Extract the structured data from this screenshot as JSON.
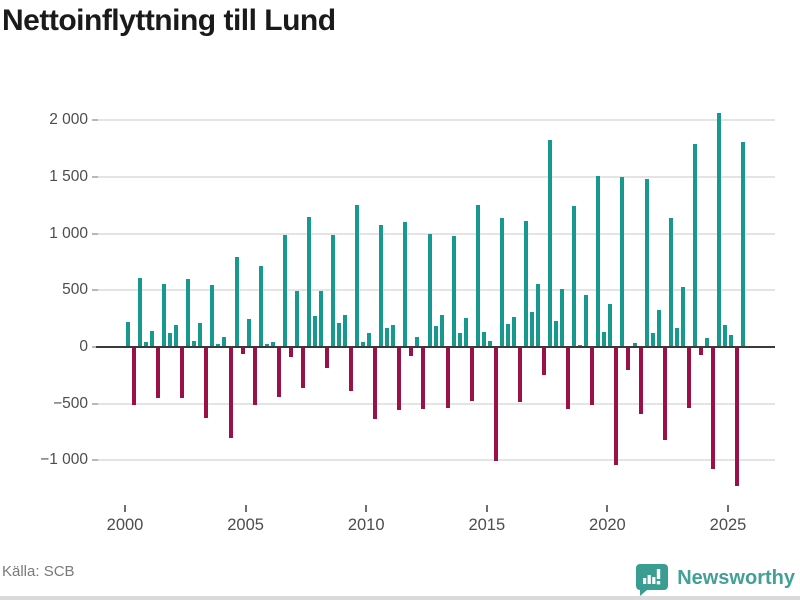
{
  "title": "Nettoinflyttning till Lund",
  "source": "Källa: SCB",
  "branding": {
    "logo_text": "Newsworthy",
    "logo_icon": "newsworthy-bubble-chart-icon"
  },
  "colors": {
    "positive_bar": "#17998f",
    "negative_bar": "#9c1048",
    "grid": "#e4e4e4",
    "zero_line": "#3a3a3a",
    "axis_text": "#4d4d4d",
    "source_text": "#7a7a7a",
    "brand_teal": "#42a096",
    "title_text": "#1a1a1a"
  },
  "chart_data": {
    "type": "bar",
    "title": "Nettoinflyttning till Lund",
    "xlabel": "",
    "ylabel": "",
    "x_unit": "quarter",
    "ylim": [
      -1250,
      2100
    ],
    "grid": "horizontal",
    "legend": "none",
    "y_ticks": [
      {
        "label": "2 000",
        "value": 2000
      },
      {
        "label": "1 500",
        "value": 1500
      },
      {
        "label": "1 000",
        "value": 1000
      },
      {
        "label": "500",
        "value": 500
      },
      {
        "label": "0",
        "value": 0
      },
      {
        "label": "−500",
        "value": -500
      },
      {
        "label": "−1 000",
        "value": -1000
      }
    ],
    "x_ticks": [
      {
        "label": "2000",
        "year": 2000
      },
      {
        "label": "2005",
        "year": 2005
      },
      {
        "label": "2010",
        "year": 2010
      },
      {
        "label": "2015",
        "year": 2015
      },
      {
        "label": "2020",
        "year": 2020
      },
      {
        "label": "2025",
        "year": 2025
      }
    ],
    "categories": [
      "2000-Q1",
      "2000-Q2",
      "2000-Q3",
      "2000-Q4",
      "2001-Q1",
      "2001-Q2",
      "2001-Q3",
      "2001-Q4",
      "2002-Q1",
      "2002-Q2",
      "2002-Q3",
      "2002-Q4",
      "2003-Q1",
      "2003-Q2",
      "2003-Q3",
      "2003-Q4",
      "2004-Q1",
      "2004-Q2",
      "2004-Q3",
      "2004-Q4",
      "2005-Q1",
      "2005-Q2",
      "2005-Q3",
      "2005-Q4",
      "2006-Q1",
      "2006-Q2",
      "2006-Q3",
      "2006-Q4",
      "2007-Q1",
      "2007-Q2",
      "2007-Q3",
      "2007-Q4",
      "2008-Q1",
      "2008-Q2",
      "2008-Q3",
      "2008-Q4",
      "2009-Q1",
      "2009-Q2",
      "2009-Q3",
      "2009-Q4",
      "2010-Q1",
      "2010-Q2",
      "2010-Q3",
      "2010-Q4",
      "2011-Q1",
      "2011-Q2",
      "2011-Q3",
      "2011-Q4",
      "2012-Q1",
      "2012-Q2",
      "2012-Q3",
      "2012-Q4",
      "2013-Q1",
      "2013-Q2",
      "2013-Q3",
      "2013-Q4",
      "2014-Q1",
      "2014-Q2",
      "2014-Q3",
      "2014-Q4",
      "2015-Q1",
      "2015-Q2",
      "2015-Q3",
      "2015-Q4",
      "2016-Q1",
      "2016-Q2",
      "2016-Q3",
      "2016-Q4",
      "2017-Q1",
      "2017-Q2",
      "2017-Q3",
      "2017-Q4",
      "2018-Q1",
      "2018-Q2",
      "2018-Q3",
      "2018-Q4",
      "2019-Q1",
      "2019-Q2",
      "2019-Q3",
      "2019-Q4",
      "2020-Q1",
      "2020-Q2",
      "2020-Q3",
      "2020-Q4",
      "2021-Q1",
      "2021-Q2",
      "2021-Q3",
      "2021-Q4",
      "2022-Q1",
      "2022-Q2",
      "2022-Q3",
      "2022-Q4",
      "2023-Q1",
      "2023-Q2",
      "2023-Q3",
      "2023-Q4",
      "2024-Q1",
      "2024-Q2",
      "2024-Q3",
      "2024-Q4",
      "2025-Q1",
      "2025-Q2",
      "2025-Q3"
    ],
    "values": [
      220,
      -505,
      610,
      45,
      140,
      -440,
      560,
      125,
      190,
      -445,
      600,
      55,
      215,
      -620,
      545,
      30,
      90,
      -790,
      790,
      -55,
      245,
      -500,
      715,
      25,
      40,
      -430,
      990,
      -80,
      495,
      -355,
      1145,
      275,
      495,
      -175,
      990,
      215,
      280,
      -375,
      1255,
      45,
      125,
      -630,
      1080,
      170,
      195,
      -545,
      1100,
      -70,
      85,
      -540,
      995,
      185,
      280,
      -530,
      980,
      125,
      255,
      -465,
      1255,
      135,
      55,
      -1000,
      1135,
      200,
      265,
      -480,
      1110,
      310,
      560,
      -240,
      1830,
      225,
      510,
      -535,
      1240,
      20,
      455,
      -500,
      1505,
      130,
      380,
      -1030,
      1500,
      -195,
      35,
      -580,
      1480,
      125,
      325,
      -815,
      1135,
      170,
      525,
      -525,
      1795,
      -60,
      75,
      -1070,
      2065,
      190,
      110,
      -1220,
      1805
    ]
  }
}
